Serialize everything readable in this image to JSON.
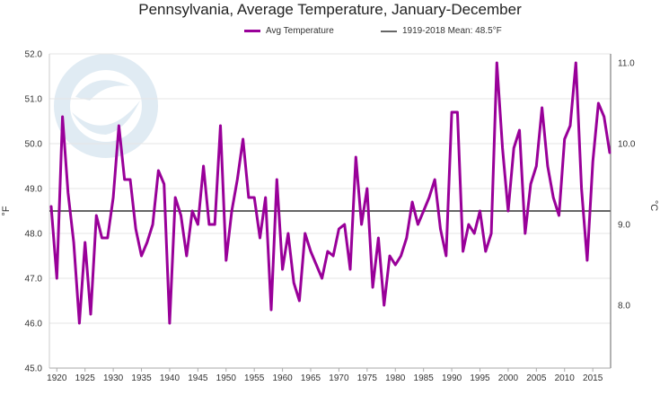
{
  "chart_data": {
    "type": "line",
    "title": "Pennsylvania, Average Temperature, January-December",
    "xlabel": "",
    "ylabel_left": "°F",
    "ylabel_right": "°C",
    "xlim": [
      1919,
      2018
    ],
    "ylim": [
      45.0,
      52.0
    ],
    "y_ticks_left": [
      "45.0",
      "46.0",
      "47.0",
      "48.0",
      "49.0",
      "50.0",
      "51.0",
      "52.0"
    ],
    "y_ticks_right": [
      "8.0",
      "9.0",
      "10.0",
      "11.0"
    ],
    "x_ticks": [
      "1920",
      "1925",
      "1930",
      "1935",
      "1940",
      "1945",
      "1950",
      "1955",
      "1960",
      "1965",
      "1970",
      "1975",
      "1980",
      "1985",
      "1990",
      "1995",
      "2000",
      "2005",
      "2010",
      "2015"
    ],
    "grid": "horizontal",
    "legend_position": "top-center",
    "series": [
      {
        "name": "Avg Temperature",
        "color": "#990099",
        "x": [
          1919,
          1920,
          1921,
          1922,
          1923,
          1924,
          1925,
          1926,
          1927,
          1928,
          1929,
          1930,
          1931,
          1932,
          1933,
          1934,
          1935,
          1936,
          1937,
          1938,
          1939,
          1940,
          1941,
          1942,
          1943,
          1944,
          1945,
          1946,
          1947,
          1948,
          1949,
          1950,
          1951,
          1952,
          1953,
          1954,
          1955,
          1956,
          1957,
          1958,
          1959,
          1960,
          1961,
          1962,
          1963,
          1964,
          1965,
          1966,
          1967,
          1968,
          1969,
          1970,
          1971,
          1972,
          1973,
          1974,
          1975,
          1976,
          1977,
          1978,
          1979,
          1980,
          1981,
          1982,
          1983,
          1984,
          1985,
          1986,
          1987,
          1988,
          1989,
          1990,
          1991,
          1992,
          1993,
          1994,
          1995,
          1996,
          1997,
          1998,
          1999,
          2000,
          2001,
          2002,
          2003,
          2004,
          2005,
          2006,
          2007,
          2008,
          2009,
          2010,
          2011,
          2012,
          2013,
          2014,
          2015,
          2016,
          2017,
          2018
        ],
        "values": [
          48.6,
          47.0,
          50.6,
          48.9,
          47.8,
          46.0,
          47.8,
          46.2,
          48.4,
          47.9,
          47.9,
          48.8,
          50.4,
          49.2,
          49.2,
          48.1,
          47.5,
          47.8,
          48.2,
          49.4,
          49.1,
          46.0,
          48.8,
          48.4,
          47.5,
          48.5,
          48.2,
          49.5,
          48.2,
          48.2,
          50.4,
          47.4,
          48.5,
          49.2,
          50.1,
          48.8,
          48.8,
          47.9,
          48.8,
          46.3,
          49.2,
          47.2,
          48.0,
          46.9,
          46.5,
          48.0,
          47.6,
          47.3,
          47.0,
          47.6,
          47.5,
          48.1,
          48.2,
          47.2,
          49.7,
          48.2,
          49.0,
          46.8,
          47.9,
          46.4,
          47.5,
          47.3,
          47.5,
          47.9,
          48.7,
          48.2,
          48.5,
          48.8,
          49.2,
          48.1,
          47.5,
          50.7,
          50.7,
          47.6,
          48.2,
          48.0,
          48.5,
          47.6,
          48.0,
          51.8,
          49.9,
          48.5,
          49.9,
          50.3,
          48.0,
          49.1,
          49.5,
          50.8,
          49.5,
          48.8,
          48.4,
          50.1,
          50.4,
          51.8,
          49.0,
          47.4,
          49.6,
          50.9,
          50.6,
          49.8
        ]
      },
      {
        "name": "1919-2018 Mean: 48.5°F",
        "color": "#666666",
        "mean": 48.5
      }
    ]
  }
}
